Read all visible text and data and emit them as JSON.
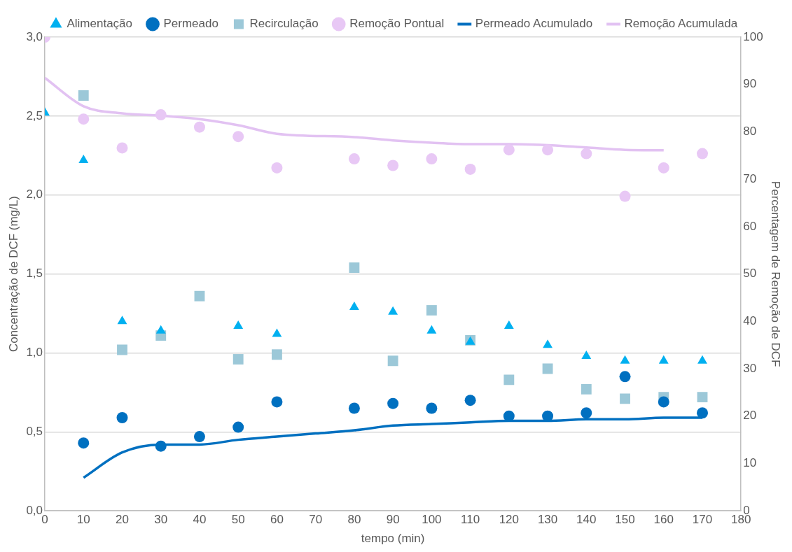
{
  "chart_data": {
    "type": "scatter",
    "xlabel": "tempo (min)",
    "ylabel": "Concentração de DCF (mg/L)",
    "y2label": "Percentagem de Remoção de DCF",
    "xlim": [
      0,
      180
    ],
    "xticks": [
      0,
      10,
      20,
      30,
      40,
      50,
      60,
      70,
      80,
      90,
      100,
      110,
      120,
      130,
      140,
      150,
      160,
      170,
      180
    ],
    "ylim": [
      0,
      3
    ],
    "yticks": [
      {
        "value": 0,
        "label": "0,0"
      },
      {
        "value": 0.5,
        "label": "0,5"
      },
      {
        "value": 1,
        "label": "1,0"
      },
      {
        "value": 1.5,
        "label": "1,5"
      },
      {
        "value": 2,
        "label": "2,0"
      },
      {
        "value": 2.5,
        "label": "2,5"
      },
      {
        "value": 3,
        "label": "3,0"
      }
    ],
    "y2lim": [
      0,
      100
    ],
    "y2ticks": [
      0,
      10,
      20,
      30,
      40,
      50,
      60,
      70,
      80,
      90,
      100
    ],
    "grid": "y",
    "legend": "top",
    "series": [
      {
        "name": "Alimentação",
        "marker": "triangle",
        "color": "#00b0f0",
        "x": [
          0,
          10,
          20,
          30,
          40,
          50,
          60,
          80,
          90,
          100,
          110,
          120,
          130,
          140,
          150,
          160,
          170
        ],
        "values": [
          2.52,
          2.22,
          1.2,
          1.14,
          null,
          1.17,
          1.12,
          1.29,
          1.26,
          1.14,
          1.07,
          1.17,
          1.05,
          0.98,
          0.95,
          0.95,
          0.95
        ]
      },
      {
        "name": "Permeado",
        "marker": "circle",
        "color": "#0070c0",
        "x": [
          10,
          20,
          30,
          40,
          50,
          60,
          80,
          90,
          100,
          110,
          120,
          130,
          140,
          150,
          160,
          170
        ],
        "values": [
          0.43,
          0.59,
          0.41,
          0.47,
          0.53,
          0.69,
          0.65,
          0.68,
          0.65,
          0.7,
          0.6,
          0.6,
          0.62,
          0.85,
          0.69,
          0.62
        ]
      },
      {
        "name": "Recirculação",
        "marker": "square",
        "color": "#9cc8d8",
        "x": [
          10,
          20,
          30,
          40,
          50,
          60,
          80,
          90,
          100,
          110,
          120,
          130,
          140,
          150,
          160,
          170
        ],
        "values": [
          2.63,
          1.02,
          1.11,
          1.36,
          0.96,
          0.99,
          1.54,
          0.95,
          1.27,
          1.08,
          0.83,
          0.9,
          0.77,
          0.71,
          0.72,
          0.72
        ]
      },
      {
        "name": "Permeado Acumulado",
        "type": "line",
        "marker": "none",
        "line_style": "solid",
        "color": "#0070c0",
        "x": [
          10,
          20,
          30,
          40,
          50,
          60,
          70,
          80,
          90,
          100,
          110,
          120,
          130,
          140,
          150,
          160,
          170
        ],
        "values": [
          0.21,
          0.37,
          0.42,
          0.42,
          0.45,
          0.47,
          0.49,
          0.51,
          0.54,
          0.55,
          0.56,
          0.57,
          0.57,
          0.58,
          0.58,
          0.59,
          0.59
        ]
      },
      {
        "name": "Remoção Pontual",
        "marker": "circle",
        "axis": "y2",
        "color": "#e8c8f5",
        "x": [
          0,
          10,
          20,
          30,
          40,
          50,
          60,
          80,
          90,
          100,
          110,
          120,
          130,
          140,
          150,
          160,
          170
        ],
        "values": [
          100,
          82.7,
          76.6,
          83.6,
          81,
          79,
          72.4,
          74.3,
          72.9,
          74.3,
          72.1,
          76.2,
          76.2,
          75.4,
          66.4,
          72.4,
          75.4
        ]
      },
      {
        "name": "Remoção Acumulada",
        "type": "line",
        "marker": "none",
        "line_style": "solid",
        "axis": "y2",
        "color": "#e2c2f2",
        "x": [
          0,
          10,
          20,
          30,
          40,
          50,
          60,
          80,
          90,
          100,
          110,
          120,
          130,
          140,
          150,
          160
        ],
        "values": [
          91.4,
          85.4,
          83.9,
          83.4,
          82.7,
          81.4,
          79.6,
          78.9,
          78.2,
          77.7,
          77.4,
          77.4,
          77.2,
          76.7,
          76.2,
          76.1
        ]
      }
    ]
  }
}
